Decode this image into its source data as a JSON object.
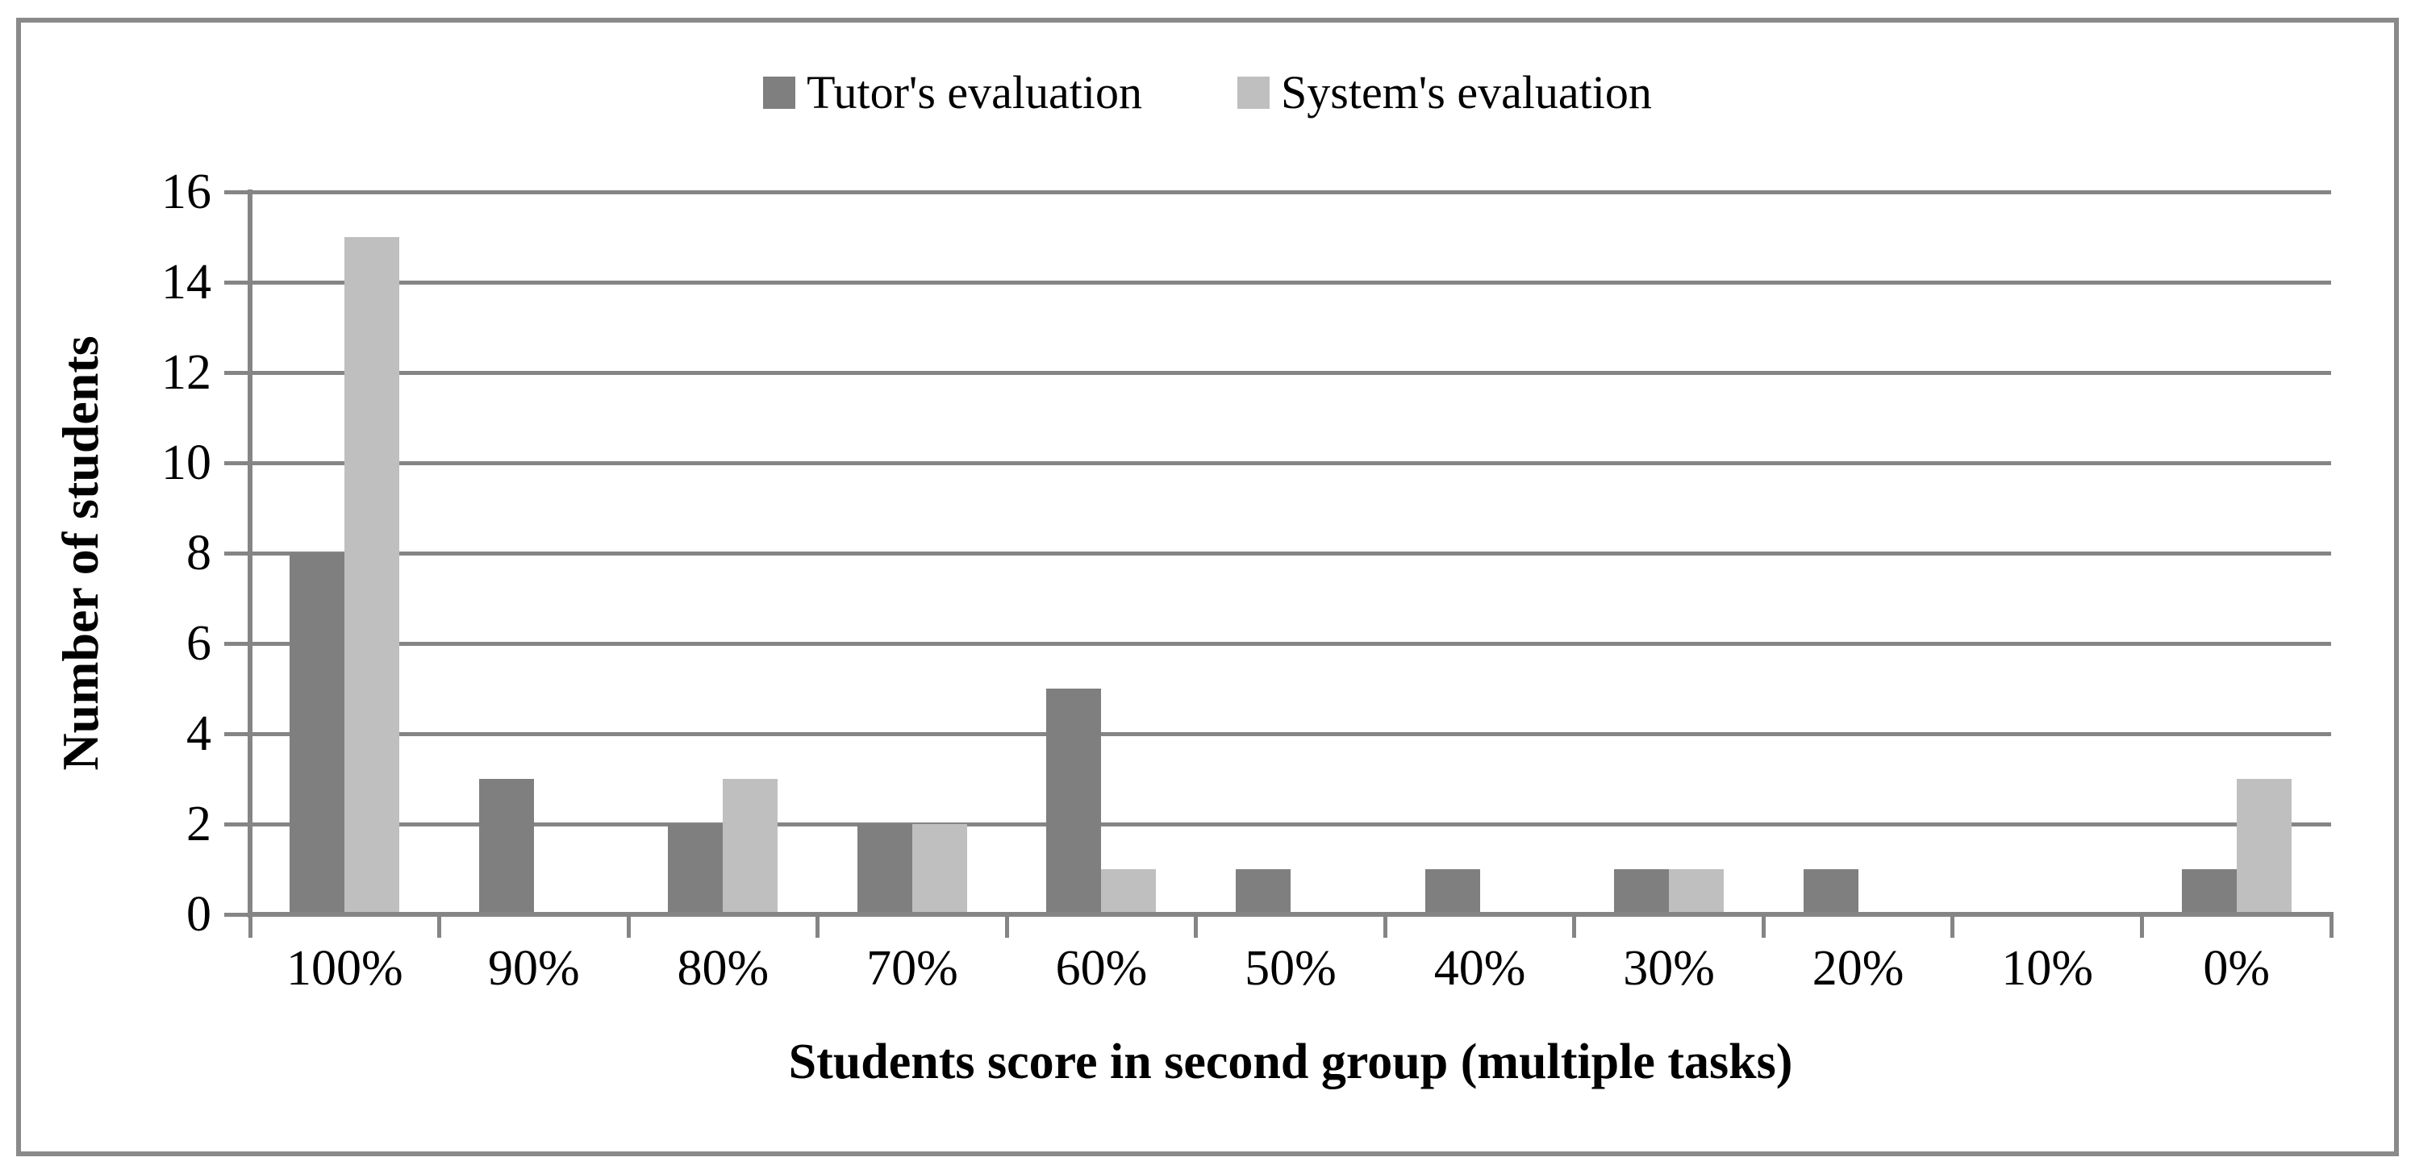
{
  "chart_data": {
    "type": "bar",
    "categories": [
      "100%",
      "90%",
      "80%",
      "70%",
      "60%",
      "50%",
      "40%",
      "30%",
      "20%",
      "10%",
      "0%"
    ],
    "series": [
      {
        "name": "Tutor's evaluation",
        "color": "#7f7f7f",
        "values": [
          8,
          3,
          2,
          2,
          5,
          1,
          1,
          1,
          1,
          0,
          1
        ]
      },
      {
        "name": "System's evaluation",
        "color": "#bfbfbf",
        "values": [
          15,
          0,
          3,
          2,
          1,
          0,
          0,
          1,
          0,
          0,
          3
        ]
      }
    ],
    "xlabel": "Students score in second group (multiple tasks)",
    "ylabel": "Number of students",
    "ylim": [
      0,
      16
    ],
    "ytick_step": 2,
    "ytick_labels": [
      "16",
      "14",
      "12",
      "10",
      "8",
      "6",
      "4",
      "2",
      "0"
    ],
    "grid": true,
    "legend_position": "top"
  },
  "colors": {
    "axis_and_grid": "#858585",
    "outer_frame": "#8a8a8a",
    "background": "#ffffff",
    "text": "#000000"
  }
}
